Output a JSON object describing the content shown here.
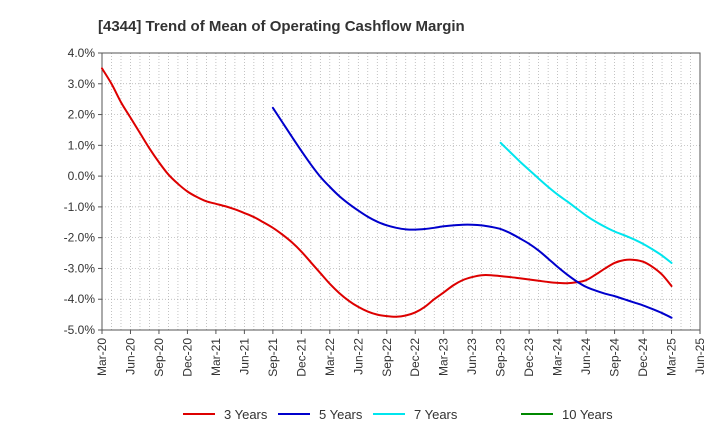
{
  "chart_data": {
    "type": "line",
    "title": "[4344]  Trend of Mean of Operating Cashflow Margin",
    "xlabel": "",
    "ylabel": "",
    "x_ticks": [
      "Mar-20",
      "Jun-20",
      "Sep-20",
      "Dec-20",
      "Mar-21",
      "Jun-21",
      "Sep-21",
      "Dec-21",
      "Mar-22",
      "Jun-22",
      "Sep-22",
      "Dec-22",
      "Mar-23",
      "Jun-23",
      "Sep-23",
      "Dec-23",
      "Mar-24",
      "Jun-24",
      "Sep-24",
      "Dec-24",
      "Mar-25",
      "Jun-25"
    ],
    "y_ticks": [
      "4.0%",
      "3.0%",
      "2.0%",
      "1.0%",
      "0.0%",
      "-1.0%",
      "-2.0%",
      "-3.0%",
      "-4.0%",
      "-5.0%"
    ],
    "ylim": [
      -5.0,
      4.0
    ],
    "grid": true,
    "legend_position": "bottom",
    "colors": {
      "three_years": "#dd0000",
      "five_years": "#0000cc",
      "seven_years": "#00e5ee",
      "ten_years": "#008800",
      "grid": "#aaaaaa",
      "axis": "#555555"
    },
    "series": [
      {
        "name": "3 Years",
        "key": "three_years",
        "x": [
          "Mar-20",
          "Apr-20",
          "May-20",
          "Jun-20",
          "Jul-20",
          "Aug-20",
          "Sep-20",
          "Oct-20",
          "Nov-20",
          "Dec-20",
          "Jan-21",
          "Feb-21",
          "Mar-21",
          "Apr-21",
          "May-21",
          "Jun-21",
          "Jul-21",
          "Aug-21",
          "Sep-21",
          "Oct-21",
          "Nov-21",
          "Dec-21",
          "Jan-22",
          "Feb-22",
          "Mar-22",
          "Apr-22",
          "May-22",
          "Jun-22",
          "Jul-22",
          "Aug-22",
          "Sep-22",
          "Oct-22",
          "Nov-22",
          "Dec-22",
          "Jan-23",
          "Feb-23",
          "Mar-23",
          "Apr-23",
          "May-23",
          "Jun-23",
          "Jul-23",
          "Aug-23",
          "Sep-23",
          "Oct-23",
          "Nov-23",
          "Dec-23",
          "Jan-24",
          "Feb-24",
          "Mar-24",
          "Apr-24",
          "May-24",
          "Jun-24",
          "Jul-24",
          "Aug-24",
          "Sep-24",
          "Oct-24",
          "Nov-24",
          "Dec-24",
          "Jan-25",
          "Feb-25",
          "Mar-25"
        ],
        "values": [
          3.5,
          3.0,
          2.4,
          1.9,
          1.4,
          0.9,
          0.45,
          0.05,
          -0.25,
          -0.5,
          -0.68,
          -0.82,
          -0.9,
          -0.98,
          -1.08,
          -1.2,
          -1.33,
          -1.5,
          -1.68,
          -1.9,
          -2.15,
          -2.45,
          -2.8,
          -3.15,
          -3.5,
          -3.8,
          -4.05,
          -4.25,
          -4.4,
          -4.5,
          -4.55,
          -4.57,
          -4.53,
          -4.43,
          -4.25,
          -4.0,
          -3.78,
          -3.55,
          -3.38,
          -3.28,
          -3.22,
          -3.22,
          -3.25,
          -3.28,
          -3.32,
          -3.36,
          -3.4,
          -3.44,
          -3.47,
          -3.48,
          -3.45,
          -3.38,
          -3.2,
          -3.0,
          -2.82,
          -2.73,
          -2.72,
          -2.78,
          -2.95,
          -3.2,
          -3.57
        ]
      },
      {
        "name": "5 Years",
        "key": "five_years",
        "x": [
          "Sep-21",
          "Oct-21",
          "Nov-21",
          "Dec-21",
          "Jan-22",
          "Feb-22",
          "Mar-22",
          "Apr-22",
          "May-22",
          "Jun-22",
          "Jul-22",
          "Aug-22",
          "Sep-22",
          "Oct-22",
          "Nov-22",
          "Dec-22",
          "Jan-23",
          "Feb-23",
          "Mar-23",
          "Apr-23",
          "May-23",
          "Jun-23",
          "Jul-23",
          "Aug-23",
          "Sep-23",
          "Oct-23",
          "Nov-23",
          "Dec-23",
          "Jan-24",
          "Feb-24",
          "Mar-24",
          "Apr-24",
          "May-24",
          "Jun-24",
          "Jul-24",
          "Aug-24",
          "Sep-24",
          "Oct-24",
          "Nov-24",
          "Dec-24",
          "Jan-25",
          "Feb-25",
          "Mar-25"
        ],
        "values": [
          2.22,
          1.75,
          1.28,
          0.82,
          0.38,
          -0.02,
          -0.35,
          -0.65,
          -0.9,
          -1.12,
          -1.32,
          -1.48,
          -1.6,
          -1.68,
          -1.73,
          -1.74,
          -1.72,
          -1.68,
          -1.63,
          -1.6,
          -1.58,
          -1.58,
          -1.6,
          -1.65,
          -1.72,
          -1.85,
          -2.02,
          -2.2,
          -2.42,
          -2.68,
          -2.95,
          -3.2,
          -3.42,
          -3.6,
          -3.72,
          -3.82,
          -3.9,
          -4.0,
          -4.1,
          -4.2,
          -4.32,
          -4.45,
          -4.6
        ]
      },
      {
        "name": "7 Years",
        "key": "seven_years",
        "x": [
          "Sep-23",
          "Oct-23",
          "Nov-23",
          "Dec-23",
          "Jan-24",
          "Feb-24",
          "Mar-24",
          "Apr-24",
          "May-24",
          "Jun-24",
          "Jul-24",
          "Aug-24",
          "Sep-24",
          "Oct-24",
          "Nov-24",
          "Dec-24",
          "Jan-25",
          "Feb-25",
          "Mar-25"
        ],
        "values": [
          1.08,
          0.78,
          0.48,
          0.2,
          -0.08,
          -0.35,
          -0.6,
          -0.82,
          -1.05,
          -1.28,
          -1.48,
          -1.65,
          -1.8,
          -1.92,
          -2.05,
          -2.2,
          -2.38,
          -2.58,
          -2.82
        ]
      },
      {
        "name": "10 Years",
        "key": "ten_years",
        "x": [],
        "values": []
      }
    ]
  }
}
